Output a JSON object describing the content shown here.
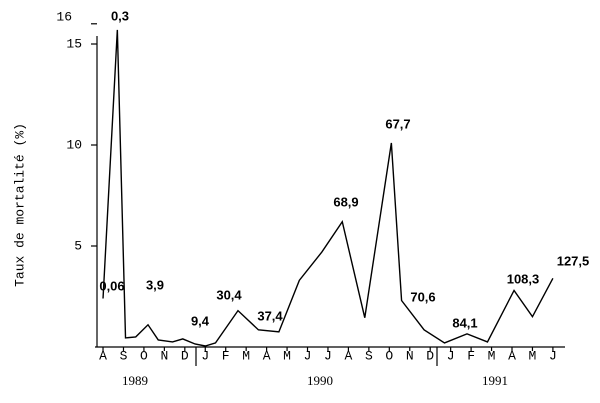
{
  "chart_data": {
    "type": "line",
    "y_label": "Taux de mortalité (%)",
    "x": [
      0,
      0.7,
      1.1,
      1.6,
      2.2,
      2.7,
      3.4,
      3.9,
      4.5,
      5.0,
      5.5,
      6.6,
      7.6,
      8.6,
      9.6,
      10.7,
      11.7,
      12.8,
      14.1,
      14.6,
      15.7,
      16.7,
      17.8,
      18.8,
      20.1,
      21.0,
      22.0
    ],
    "series": [
      {
        "color": "#000000",
        "values": [
          2.4,
          15.7,
          0.45,
          0.5,
          1.1,
          0.35,
          0.25,
          0.4,
          0.15,
          0.05,
          0.2,
          1.8,
          0.85,
          0.75,
          3.3,
          4.7,
          6.2,
          1.45,
          10.1,
          2.3,
          0.85,
          0.2,
          0.65,
          0.25,
          2.8,
          1.5,
          3.4
        ]
      }
    ],
    "xlim": [
      -0.5,
      24
    ],
    "xticks": [
      {
        "value": 0,
        "label": "A"
      },
      {
        "value": 1,
        "label": "S"
      },
      {
        "value": 2,
        "label": "O"
      },
      {
        "value": 3,
        "label": "N"
      },
      {
        "value": 4,
        "label": "D"
      },
      {
        "value": 5,
        "label": "J"
      },
      {
        "value": 6,
        "label": "F"
      },
      {
        "value": 7,
        "label": "M"
      },
      {
        "value": 8,
        "label": "A"
      },
      {
        "value": 9,
        "label": "M"
      },
      {
        "value": 10,
        "label": "J"
      },
      {
        "value": 11,
        "label": "J"
      },
      {
        "value": 12,
        "label": "A"
      },
      {
        "value": 13,
        "label": "S"
      },
      {
        "value": 14,
        "label": "O"
      },
      {
        "value": 15,
        "label": "N"
      },
      {
        "value": 16,
        "label": "D"
      },
      {
        "value": 17,
        "label": "J"
      },
      {
        "value": 18,
        "label": "F"
      },
      {
        "value": 19,
        "label": "M"
      },
      {
        "value": 20,
        "label": "A"
      },
      {
        "value": 21,
        "label": "M"
      },
      {
        "value": 22,
        "label": "J"
      }
    ],
    "ylim": [
      0,
      16
    ],
    "yticks": [
      5,
      10,
      15,
      16
    ],
    "years": [
      "1989",
      "1990",
      "1991"
    ],
    "annotations": [
      "0,3",
      "0,06",
      "3,9",
      "9,4",
      "30,4",
      "37,4",
      "68,9",
      "67,7",
      "70,6",
      "84,1",
      "108,3",
      "127,5"
    ]
  }
}
